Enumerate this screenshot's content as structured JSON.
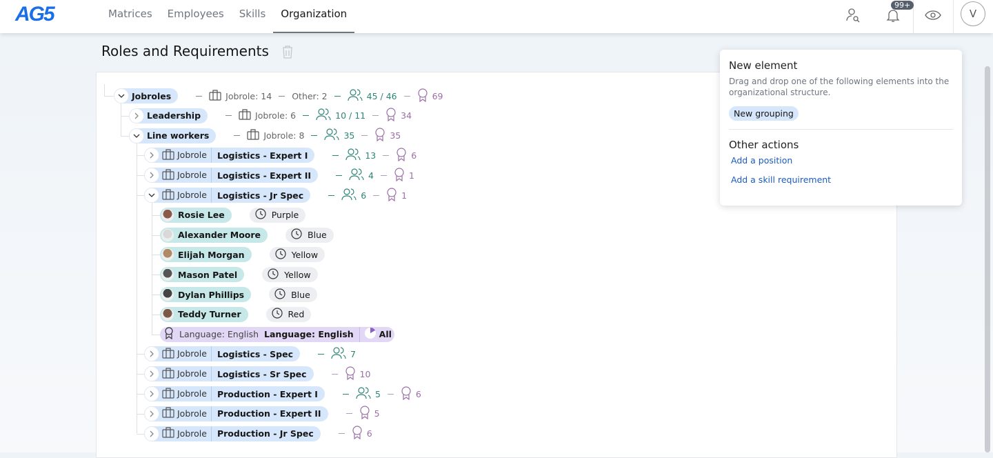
{
  "header": {
    "logo": "AG5",
    "nav": [
      "Matrices",
      "Employees",
      "Skills",
      "Organization"
    ],
    "active": "Organization",
    "notification_count": "99+",
    "avatar_initial": "V"
  },
  "page": {
    "title": "Roles and Requirements"
  },
  "tree": [
    {
      "level": 0,
      "type": "group",
      "label": "Jobroles",
      "expanded": true,
      "metrics": [
        {
          "k": "jobrole",
          "t": "Jobrole: 14"
        },
        {
          "k": "other",
          "t": "Other: 2"
        },
        {
          "k": "people",
          "t": "45 / 46"
        },
        {
          "k": "award",
          "t": "69"
        }
      ]
    },
    {
      "level": 1,
      "type": "group",
      "label": "Leadership",
      "expanded": false,
      "metrics": [
        {
          "k": "jobrole",
          "t": "Jobrole: 6"
        },
        {
          "k": "people",
          "t": "10 / 11"
        },
        {
          "k": "award",
          "t": "34"
        }
      ]
    },
    {
      "level": 1,
      "type": "group",
      "label": "Line workers",
      "expanded": true,
      "metrics": [
        {
          "k": "jobrole",
          "t": "Jobrole: 8"
        },
        {
          "k": "people",
          "t": "35"
        },
        {
          "k": "award",
          "t": "35"
        }
      ]
    },
    {
      "level": 2,
      "type": "jobrole",
      "kind": "Jobrole",
      "label": "Logistics - Expert I",
      "expanded": false,
      "metrics": [
        {
          "k": "people",
          "t": "13"
        },
        {
          "k": "award",
          "t": "6"
        }
      ]
    },
    {
      "level": 2,
      "type": "jobrole",
      "kind": "Jobrole",
      "label": "Logistics - Expert II",
      "expanded": false,
      "metrics": [
        {
          "k": "people",
          "t": "4"
        },
        {
          "k": "award",
          "t": "1"
        }
      ]
    },
    {
      "level": 2,
      "type": "jobrole",
      "kind": "Jobrole",
      "label": "Logistics - Jr Spec",
      "expanded": true,
      "metrics": [
        {
          "k": "people",
          "t": "6"
        },
        {
          "k": "award",
          "t": "1"
        }
      ]
    },
    {
      "level": 3,
      "type": "person",
      "label": "Rosie Lee",
      "shift": "Purple",
      "avatar": "#8a5a4a"
    },
    {
      "level": 3,
      "type": "person",
      "label": "Alexander Moore",
      "shift": "Blue",
      "avatar": "#d8d8d8"
    },
    {
      "level": 3,
      "type": "person",
      "label": "Elijah Morgan",
      "shift": "Yellow",
      "avatar": "#b08a66"
    },
    {
      "level": 3,
      "type": "person",
      "label": "Mason Patel",
      "shift": "Yellow",
      "avatar": "#555555"
    },
    {
      "level": 3,
      "type": "person",
      "label": "Dylan Phillips",
      "shift": "Blue",
      "avatar": "#444444"
    },
    {
      "level": 3,
      "type": "person",
      "label": "Teddy Turner",
      "shift": "Red",
      "avatar": "#7a5a48"
    },
    {
      "level": 3,
      "type": "requirement",
      "skill": "Language: English",
      "label": "Language: English",
      "scope": "All"
    },
    {
      "level": 2,
      "type": "jobrole",
      "kind": "Jobrole",
      "label": "Logistics - Spec",
      "expanded": false,
      "metrics": [
        {
          "k": "people",
          "t": "7"
        }
      ]
    },
    {
      "level": 2,
      "type": "jobrole",
      "kind": "Jobrole",
      "label": "Logistics - Sr Spec",
      "expanded": false,
      "metrics": [
        {
          "k": "award",
          "t": "10"
        }
      ]
    },
    {
      "level": 2,
      "type": "jobrole",
      "kind": "Jobrole",
      "label": "Production - Expert I",
      "expanded": false,
      "metrics": [
        {
          "k": "people",
          "t": "5"
        },
        {
          "k": "award",
          "t": "6"
        }
      ]
    },
    {
      "level": 2,
      "type": "jobrole",
      "kind": "Jobrole",
      "label": "Production - Expert II",
      "expanded": false,
      "metrics": [
        {
          "k": "award",
          "t": "5"
        }
      ]
    },
    {
      "level": 2,
      "type": "jobrole",
      "kind": "Jobrole",
      "label": "Production - Jr Spec",
      "expanded": false,
      "metrics": [
        {
          "k": "award",
          "t": "6"
        }
      ]
    }
  ],
  "panel": {
    "title": "New element",
    "description": "Drag and drop one of the following elements into the organizational structure.",
    "new_grouping": "New grouping",
    "other_title": "Other actions",
    "add_position": "Add a position",
    "add_skill": "Add a skill requirement"
  },
  "colors": {
    "brand": "#1a6fe8",
    "group_pill": "#d6e6fb",
    "person_pill": "#c7e8e8",
    "requirement_pill": "#e2d8f6",
    "people_metric": "#2c8576",
    "award_metric": "#9a6fa5"
  }
}
